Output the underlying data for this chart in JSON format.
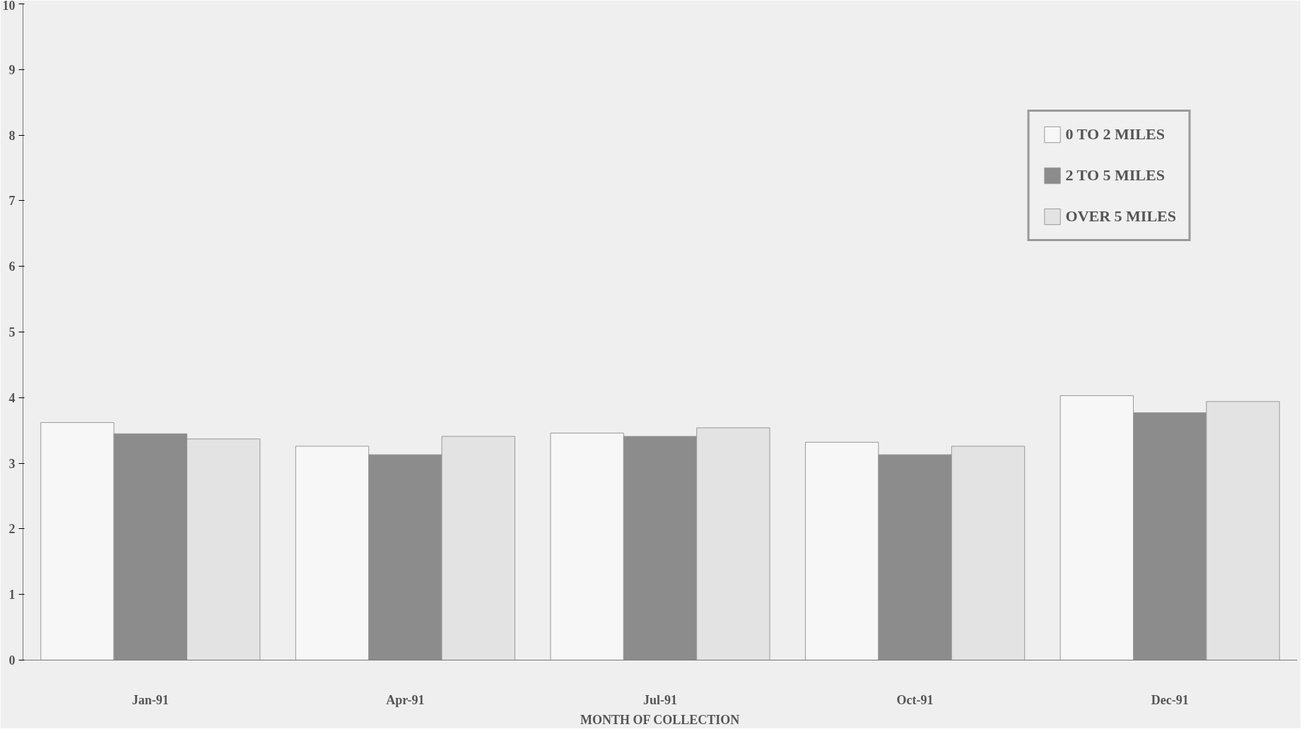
{
  "chart_data": {
    "type": "bar",
    "xlabel": "MONTH OF COLLECTION",
    "categories": [
      "Jan-91",
      "Apr-91",
      "Jul-91",
      "Oct-91",
      "Dec-91"
    ],
    "series": [
      {
        "name": "0 TO 2 MILES",
        "color": "#f7f7f7",
        "values": [
          3.62,
          3.26,
          3.46,
          3.32,
          4.03
        ]
      },
      {
        "name": "2 TO 5 MILES",
        "color": "#8c8c8c",
        "values": [
          3.45,
          3.13,
          3.41,
          3.13,
          3.77
        ]
      },
      {
        "name": "OVER 5 MILES",
        "color": "#e3e3e3",
        "values": [
          3.37,
          3.41,
          3.54,
          3.26,
          3.94
        ]
      }
    ],
    "ylim": [
      0,
      10
    ],
    "yticks": [
      0,
      1,
      2,
      3,
      4,
      5,
      6,
      7,
      8,
      9,
      10
    ],
    "grid": false,
    "legend": "top right"
  }
}
